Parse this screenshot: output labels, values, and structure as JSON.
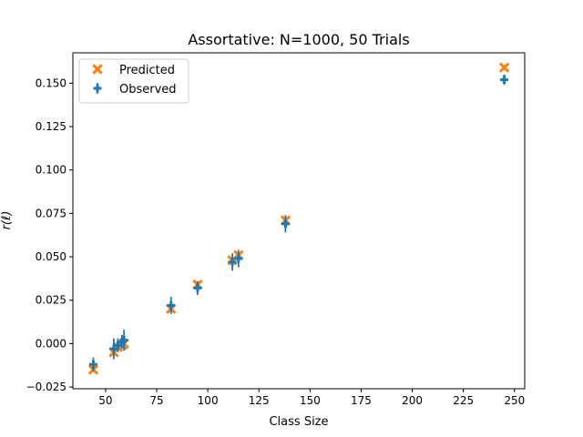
{
  "chart_data": {
    "type": "scatter",
    "title": "Assortative: N=1000, 50 Trials",
    "xlabel": "Class Size",
    "ylabel": "r(ℓ)",
    "xlim": [
      34,
      255
    ],
    "ylim": [
      -0.026,
      0.1675
    ],
    "xticks": [
      50,
      75,
      100,
      125,
      150,
      175,
      200,
      225,
      250
    ],
    "yticks": [
      -0.025,
      0.0,
      0.025,
      0.05,
      0.075,
      0.1,
      0.125,
      0.15
    ],
    "ytick_labels": [
      "−0.025",
      "0.000",
      "0.025",
      "0.050",
      "0.075",
      "0.100",
      "0.125",
      "0.150"
    ],
    "legend_position": "top-left",
    "series": [
      {
        "name": "Predicted",
        "marker": "x-filled",
        "color": "#ff7f0e",
        "x": [
          44,
          54,
          56,
          58,
          59,
          82,
          95,
          112,
          115,
          138,
          245
        ],
        "y": [
          -0.015,
          -0.005,
          -0.002,
          -0.001,
          0.0,
          0.02,
          0.034,
          0.048,
          0.051,
          0.071,
          0.159
        ]
      },
      {
        "name": "Observed",
        "marker": "plus-filled",
        "color": "#1f77b4",
        "x": [
          44,
          54,
          56,
          58,
          59,
          82,
          95,
          112,
          115,
          138,
          245
        ],
        "y": [
          -0.012,
          -0.003,
          -0.001,
          0.001,
          0.002,
          0.022,
          0.032,
          0.047,
          0.049,
          0.069,
          0.152
        ],
        "yerr": [
          0.004,
          0.006,
          0.004,
          0.004,
          0.006,
          0.005,
          0.004,
          0.005,
          0.005,
          0.005,
          0.003
        ]
      }
    ]
  }
}
